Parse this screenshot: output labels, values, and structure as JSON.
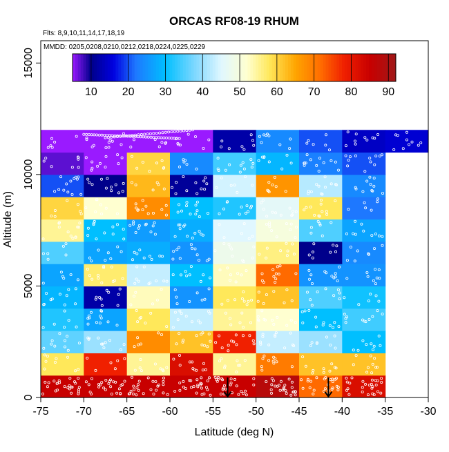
{
  "chart_data": {
    "type": "heatmap",
    "title": "ORCAS RF08-19 RHUM",
    "flights_note": "Flts: 8,9,10,11,14,17,18,19",
    "dates_note": "MMDD: 0205,0208,0210,0212,0218,0224,0225,0229",
    "xlabel": "Latitude (deg N)",
    "ylabel": "Altitude (m)",
    "xlim": [
      -75,
      -30
    ],
    "ylim": [
      0,
      16000
    ],
    "x_ticks": [
      -75,
      -70,
      -65,
      -60,
      -55,
      -50,
      -45,
      -40,
      -35,
      -30
    ],
    "y_ticks": [
      0,
      5000,
      10000,
      15000
    ],
    "colorbar": {
      "range": [
        5,
        92
      ],
      "ticks": [
        10,
        20,
        30,
        40,
        50,
        60,
        70,
        80,
        90
      ]
    },
    "cell_width_deg": 5,
    "cell_height_m": 1000,
    "lat_bin_starts": [
      -75,
      -70,
      -65,
      -60,
      -55,
      -50,
      -45,
      -40,
      -35
    ],
    "rows": [
      {
        "alt_bottom": 0,
        "values": [
          85,
          85,
          85,
          85,
          85,
          88,
          72,
          82,
          null
        ]
      },
      {
        "alt_bottom": 1000,
        "values": [
          58,
          78,
          55,
          82,
          55,
          70,
          62,
          62,
          null
        ]
      },
      {
        "alt_bottom": 2000,
        "values": [
          36,
          40,
          68,
          62,
          78,
          43,
          40,
          30,
          null
        ]
      },
      {
        "alt_bottom": 3000,
        "values": [
          32,
          27,
          58,
          43,
          55,
          52,
          30,
          34,
          null
        ]
      },
      {
        "alt_bottom": 4000,
        "values": [
          29,
          12,
          53,
          25,
          58,
          62,
          35,
          31,
          null
        ]
      },
      {
        "alt_bottom": 5000,
        "values": [
          27,
          57,
          43,
          30,
          53,
          72,
          25,
          25,
          null
        ]
      },
      {
        "alt_bottom": 6000,
        "values": [
          35,
          27,
          28,
          25,
          48,
          56,
          10,
          24,
          null
        ]
      },
      {
        "alt_bottom": 7000,
        "values": [
          55,
          30,
          26,
          28,
          45,
          50,
          35,
          27,
          null
        ]
      },
      {
        "alt_bottom": 8000,
        "values": [
          60,
          52,
          68,
          30,
          32,
          46,
          58,
          22,
          null
        ]
      },
      {
        "alt_bottom": 9000,
        "values": [
          20,
          10,
          63,
          11,
          44,
          67,
          42,
          24,
          null
        ]
      },
      {
        "alt_bottom": 10000,
        "values": [
          7,
          5,
          60,
          24,
          34,
          29,
          23,
          20,
          null
        ]
      },
      {
        "alt_bottom": 11000,
        "values": [
          4,
          4,
          4,
          4,
          12,
          24,
          20,
          14,
          15
        ]
      }
    ],
    "arrow_latitudes": [
      -53.3,
      -41.6
    ]
  }
}
